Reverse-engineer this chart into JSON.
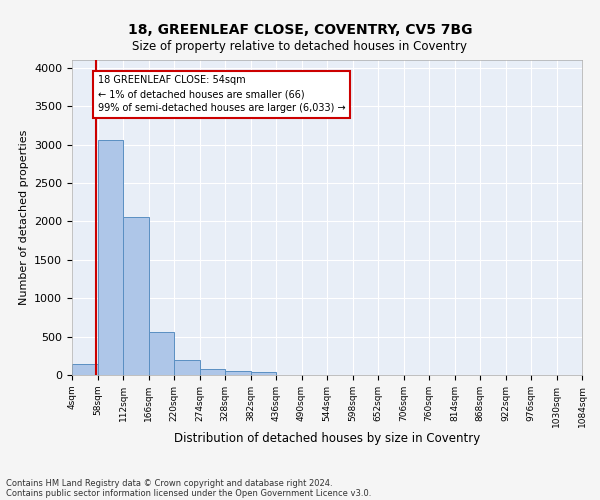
{
  "title1": "18, GREENLEAF CLOSE, COVENTRY, CV5 7BG",
  "title2": "Size of property relative to detached houses in Coventry",
  "xlabel": "Distribution of detached houses by size in Coventry",
  "ylabel": "Number of detached properties",
  "bin_labels": [
    "4sqm",
    "58sqm",
    "112sqm",
    "166sqm",
    "220sqm",
    "274sqm",
    "328sqm",
    "382sqm",
    "436sqm",
    "490sqm",
    "544sqm",
    "598sqm",
    "652sqm",
    "706sqm",
    "760sqm",
    "814sqm",
    "868sqm",
    "922sqm",
    "976sqm",
    "1030sqm",
    "1084sqm"
  ],
  "bar_values": [
    140,
    3060,
    2060,
    565,
    195,
    75,
    55,
    40,
    0,
    0,
    0,
    0,
    0,
    0,
    0,
    0,
    0,
    0,
    0,
    0
  ],
  "bar_color": "#aec6e8",
  "bar_edge_color": "#5a8fc2",
  "background_color": "#e8eef7",
  "grid_color": "#ffffff",
  "vline_color": "#cc0000",
  "annotation_text": "18 GREENLEAF CLOSE: 54sqm\n← 1% of detached houses are smaller (66)\n99% of semi-detached houses are larger (6,033) →",
  "annotation_box_color": "#ffffff",
  "annotation_box_edge": "#cc0000",
  "ylim": [
    0,
    4100
  ],
  "yticks": [
    0,
    500,
    1000,
    1500,
    2000,
    2500,
    3000,
    3500,
    4000
  ],
  "footnote1": "Contains HM Land Registry data © Crown copyright and database right 2024.",
  "footnote2": "Contains public sector information licensed under the Open Government Licence v3.0.",
  "fig_facecolor": "#f5f5f5"
}
